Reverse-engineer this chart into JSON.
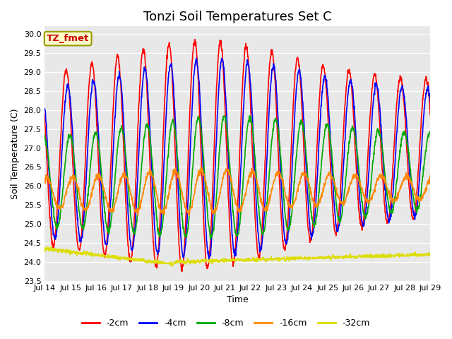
{
  "title": "Tonzi Soil Temperatures Set C",
  "xlabel": "Time",
  "ylabel": "Soil Temperature (C)",
  "legend_label": "TZ_fmet",
  "series_labels": [
    "-2cm",
    "-4cm",
    "-8cm",
    "-16cm",
    "-32cm"
  ],
  "series_colors": [
    "#ff0000",
    "#0000ff",
    "#00aa00",
    "#ff8800",
    "#dddd00"
  ],
  "ylim": [
    23.5,
    30.2
  ],
  "xlim_days": [
    14,
    29
  ],
  "xtick_labels": [
    "Jul 14",
    "Jul 15",
    "Jul 16",
    "Jul 17",
    "Jul 18",
    "Jul 19",
    "Jul 20",
    "Jul 21",
    "Jul 22",
    "Jul 23",
    "Jul 24",
    "Jul 25",
    "Jul 26",
    "Jul 27",
    "Jul 28",
    "Jul 29"
  ],
  "background_color": "#ffffff",
  "plot_bg_color": "#e8e8e8",
  "title_fontsize": 13,
  "axis_label_fontsize": 9,
  "tick_fontsize": 8,
  "legend_fontsize": 9,
  "line_width": 1.2,
  "yticks": [
    23.5,
    24.0,
    24.5,
    25.0,
    25.5,
    26.0,
    26.5,
    27.0,
    27.5,
    28.0,
    28.5,
    29.0,
    29.5,
    30.0
  ]
}
